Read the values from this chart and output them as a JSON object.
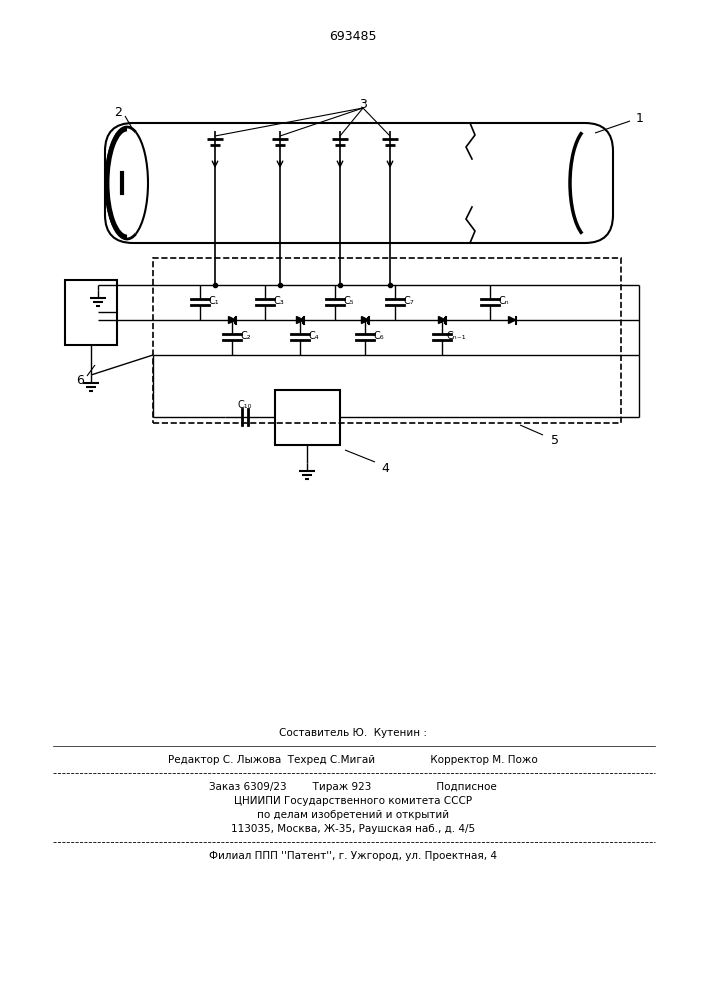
{
  "patent_number": "693485",
  "bg_color": "#ffffff",
  "line_color": "#000000",
  "footer": {
    "line1": "Составитель Ю.  Кутенин :",
    "line2": "Редактор С. Лыжова  Техред С.Мигай           Корректор М. Пожо",
    "line3": "Заказ 6309/23       Тираж 923           Подписное",
    "line4": "ЦНИИПИ Государственного комитета СССР",
    "line5": "по делам изобретений и открытий",
    "line6": "113035, Москва, Ж-35, Раушская наб., д. 4/5",
    "line7": "Филиал ППП ''Патент'', г. Ужгород, ул. Проектная, 4"
  }
}
